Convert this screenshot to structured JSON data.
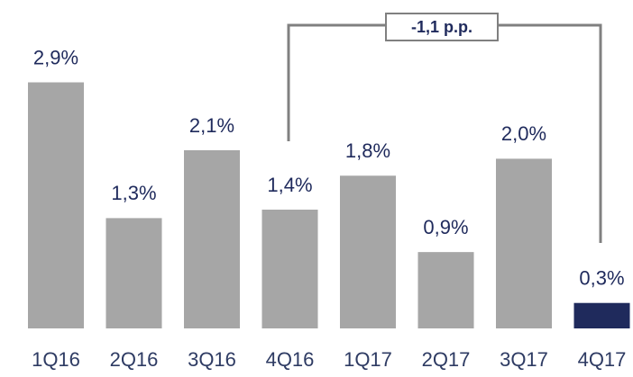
{
  "chart_data": {
    "type": "bar",
    "categories": [
      "1Q16",
      "2Q16",
      "3Q16",
      "4Q16",
      "1Q17",
      "2Q17",
      "3Q17",
      "4Q17"
    ],
    "values": [
      2.9,
      1.3,
      2.1,
      1.4,
      1.8,
      0.9,
      2.0,
      0.3
    ],
    "value_labels": [
      "2,9%",
      "1,3%",
      "2,1%",
      "1,4%",
      "1,8%",
      "0,9%",
      "2,0%",
      "0,3%"
    ],
    "colors": [
      "#a6a6a6",
      "#a6a6a6",
      "#a6a6a6",
      "#a6a6a6",
      "#a6a6a6",
      "#a6a6a6",
      "#a6a6a6",
      "#1f2a5c"
    ],
    "annotation": "-1,1 p.p."
  }
}
